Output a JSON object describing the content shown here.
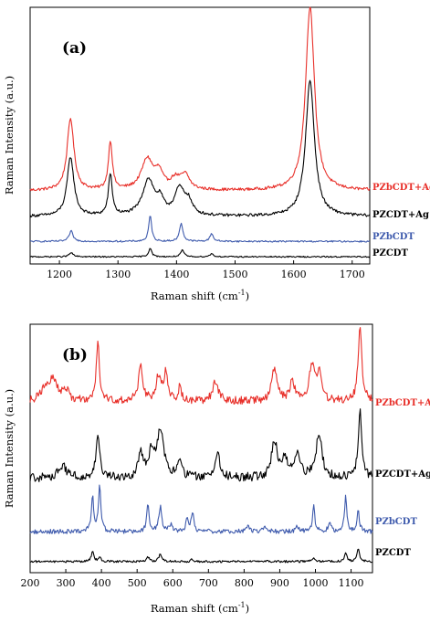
{
  "chart_data": [
    {
      "type": "line",
      "panel_label": "(a)",
      "xlabel": "Raman shift (cm",
      "xlabel_sup": "-1",
      "xlabel_close": ")",
      "ylabel": "Raman Intensity (a.u.)",
      "xlim": [
        1150,
        1730
      ],
      "ylim": [
        0,
        100
      ],
      "x_ticks": [
        1200,
        1300,
        1400,
        1500,
        1600,
        1700
      ],
      "series": [
        {
          "name": "PZbCDT+Ag",
          "color": "#e8302a",
          "base": 28.5,
          "noise": 0.55,
          "peaks": [
            [
              1219,
              28,
              7
            ],
            [
              1287,
              19,
              4
            ],
            [
              1350,
              12,
              12
            ],
            [
              1370,
              6,
              8
            ],
            [
              1398,
              4,
              10
            ],
            [
              1415,
              5.5,
              9
            ],
            [
              1628,
              72,
              9
            ]
          ]
        },
        {
          "name": "PZCDT+Ag",
          "color": "#000000",
          "base": 18.5,
          "noise": 0.55,
          "peaks": [
            [
              1219,
              23,
              7
            ],
            [
              1287,
              16,
              4
            ],
            [
              1352,
              14,
              12
            ],
            [
              1372,
              5,
              7
            ],
            [
              1405,
              10,
              10
            ],
            [
              1420,
              5,
              8
            ],
            [
              1628,
              53,
              9
            ]
          ]
        },
        {
          "name": "PZbCDT",
          "color": "#3f5bad",
          "base": 8.8,
          "noise": 0.3,
          "peaks": [
            [
              1220,
              4,
              4
            ],
            [
              1355,
              10,
              3
            ],
            [
              1408,
              7,
              3.5
            ],
            [
              1460,
              3,
              3.5
            ]
          ]
        },
        {
          "name": "PZCDT",
          "color": "#000000",
          "base": 2.8,
          "noise": 0.25,
          "peaks": [
            [
              1220,
              1.6,
              4
            ],
            [
              1355,
              3.5,
              3
            ],
            [
              1410,
              2.5,
              3.5
            ],
            [
              1460,
              1.2,
              3.5
            ]
          ]
        }
      ]
    },
    {
      "type": "line",
      "panel_label": "(b)",
      "xlabel": "Raman shift (cm",
      "xlabel_sup": "-1",
      "xlabel_close": ")",
      "ylabel": "Raman Intensity (a.u.)",
      "xlim": [
        200,
        1160
      ],
      "ylim": [
        0,
        100
      ],
      "x_ticks": [
        200,
        300,
        400,
        500,
        600,
        700,
        800,
        900,
        1000,
        1100
      ],
      "series": [
        {
          "name": "PZbCDT+Ag",
          "color": "#e8302a",
          "base": 69,
          "noise": 1.6,
          "peaks": [
            [
              240,
              4,
              12
            ],
            [
              265,
              9,
              14
            ],
            [
              300,
              4,
              10
            ],
            [
              390,
              24,
              5
            ],
            [
              510,
              14,
              7
            ],
            [
              560,
              10,
              8
            ],
            [
              580,
              11,
              6
            ],
            [
              620,
              6,
              5
            ],
            [
              720,
              8,
              9
            ],
            [
              885,
              13,
              9
            ],
            [
              935,
              8,
              8
            ],
            [
              990,
              14,
              9
            ],
            [
              1010,
              11,
              7
            ],
            [
              1125,
              30,
              6
            ]
          ]
        },
        {
          "name": "PZCDT+Ag",
          "color": "#000000",
          "base": 38,
          "noise": 1.8,
          "peaks": [
            [
              290,
              5,
              14
            ],
            [
              390,
              17,
              6
            ],
            [
              510,
              10,
              8
            ],
            [
              540,
              9,
              9
            ],
            [
              565,
              19,
              12
            ],
            [
              620,
              6,
              7
            ],
            [
              725,
              10,
              9
            ],
            [
              885,
              15,
              10
            ],
            [
              915,
              8,
              8
            ],
            [
              950,
              10,
              9
            ],
            [
              1010,
              18,
              10
            ],
            [
              1125,
              27,
              6
            ]
          ]
        },
        {
          "name": "PZbCDT",
          "color": "#3f5bad",
          "base": 16.5,
          "noise": 0.9,
          "peaks": [
            [
              375,
              14,
              4
            ],
            [
              395,
              18,
              4
            ],
            [
              530,
              11,
              4
            ],
            [
              565,
              10,
              5
            ],
            [
              595,
              3,
              5
            ],
            [
              640,
              5,
              4
            ],
            [
              655,
              8,
              4
            ],
            [
              810,
              2,
              6
            ],
            [
              860,
              2,
              6
            ],
            [
              950,
              2,
              6
            ],
            [
              995,
              10,
              4
            ],
            [
              1040,
              3,
              5
            ],
            [
              1085,
              14,
              4
            ],
            [
              1120,
              8,
              4
            ]
          ]
        },
        {
          "name": "PZCDT",
          "color": "#000000",
          "base": 4.5,
          "noise": 0.45,
          "peaks": [
            [
              375,
              4,
              4
            ],
            [
              395,
              2,
              4
            ],
            [
              530,
              2,
              4
            ],
            [
              565,
              3,
              5
            ],
            [
              655,
              1,
              4
            ],
            [
              995,
              1.5,
              4
            ],
            [
              1085,
              3.5,
              4
            ],
            [
              1120,
              5,
              4
            ]
          ]
        }
      ]
    }
  ]
}
